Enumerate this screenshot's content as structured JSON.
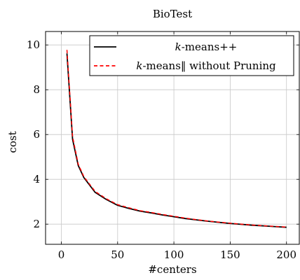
{
  "chart_data": {
    "type": "line",
    "title": "BioTest",
    "xlabel": "#centers",
    "ylabel": "cost",
    "xlim": [
      -14,
      212
    ],
    "ylim": [
      1.1,
      10.6
    ],
    "xticks": [
      0,
      50,
      100,
      150,
      200
    ],
    "xtick_labels": [
      "0",
      "50",
      "100",
      "150",
      "200"
    ],
    "yticks": [
      2,
      4,
      6,
      8,
      10
    ],
    "ytick_labels": [
      "2",
      "4",
      "6",
      "8",
      "10"
    ],
    "grid": true,
    "legend_position": "top-right",
    "series": [
      {
        "name": "k-means++",
        "legend_label": {
          "italic": "k",
          "rest": "-means++"
        },
        "color": "#000000",
        "dash": "solid",
        "x": [
          5,
          10,
          15,
          20,
          30,
          40,
          50,
          60,
          70,
          80,
          90,
          100,
          110,
          120,
          130,
          140,
          150,
          160,
          170,
          180,
          190,
          200
        ],
        "y": [
          9.62,
          5.78,
          4.62,
          4.08,
          3.42,
          3.1,
          2.84,
          2.7,
          2.58,
          2.5,
          2.41,
          2.33,
          2.25,
          2.19,
          2.13,
          2.08,
          2.03,
          1.99,
          1.95,
          1.92,
          1.89,
          1.86
        ]
      },
      {
        "name": "k-means‖ without Pruning",
        "legend_label": {
          "italic": "k",
          "rest": "-means‖ without Pruning"
        },
        "color": "#ff0000",
        "dash": "dashed",
        "x": [
          5,
          10,
          15,
          20,
          30,
          40,
          50,
          60,
          70,
          80,
          90,
          100,
          110,
          120,
          130,
          140,
          150,
          160,
          170,
          180,
          190,
          200
        ],
        "y": [
          9.78,
          5.9,
          4.68,
          4.12,
          3.46,
          3.13,
          2.87,
          2.73,
          2.6,
          2.52,
          2.43,
          2.35,
          2.27,
          2.2,
          2.14,
          2.09,
          2.04,
          2.0,
          1.96,
          1.93,
          1.9,
          1.87
        ]
      }
    ]
  }
}
